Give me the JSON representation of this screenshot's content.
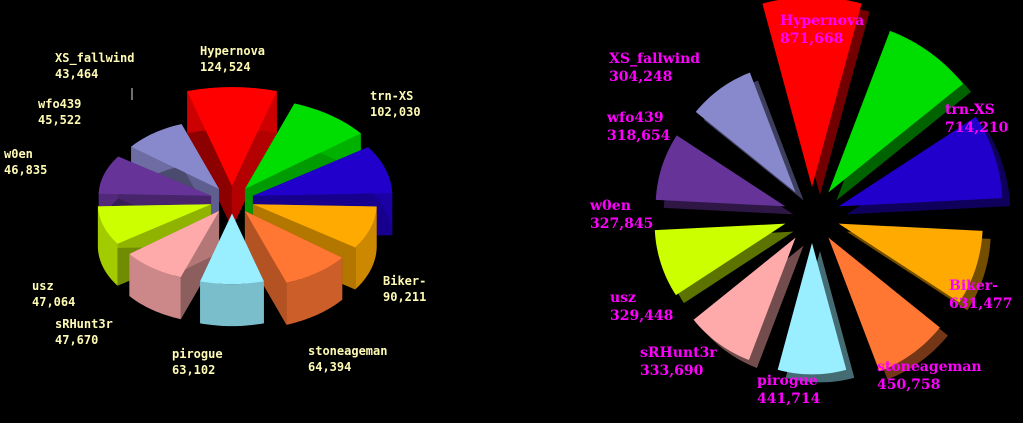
{
  "chart_data": [
    {
      "type": "pie",
      "title": "",
      "label_color": "#fffbb5",
      "categories": [
        "Hypernova",
        "trn-XS",
        "Biker-",
        "stoneageman",
        "pirogue",
        "sRHunt3r",
        "usz",
        "w0en",
        "wfo439",
        "XS_fallwind"
      ],
      "labels": [
        "Hypernova",
        "trn-XS",
        "Biker-",
        "stoneageman",
        "pirogue",
        "sRHunt3r",
        "usz",
        "w0en",
        "wfo439",
        "XS_fallwind"
      ],
      "value_labels": [
        "124,524",
        "102,030",
        "90,211",
        "64,394",
        "63,102",
        "47,670",
        "47,064",
        "46,835",
        "45,522",
        "43,464"
      ],
      "values": [
        124524,
        102030,
        90211,
        64394,
        63102,
        47670,
        47064,
        46835,
        45522,
        43464
      ],
      "colors": [
        "#ff0000",
        "#00dd00",
        "#2200cc",
        "#ffaa00",
        "#ff7733",
        "#99eeff",
        "#ffaaaa",
        "#ccff00",
        "#663399",
        "#8888cc"
      ]
    },
    {
      "type": "pie",
      "title": "",
      "label_color": "#ff00ff",
      "categories": [
        "Hypernova",
        "trn-XS",
        "Biker-",
        "stoneageman",
        "pirogue",
        "sRHunt3r",
        "usz",
        "w0en",
        "wfo439",
        "XS_fallwind"
      ],
      "labels": [
        "Hypernova",
        "trn-XS",
        "Biker-",
        "stoneageman",
        "pirogue",
        "sRHunt3r",
        "usz",
        "w0en",
        "wfo439",
        "XS_fallwind"
      ],
      "value_labels": [
        "871,668",
        "714,210",
        "631,477",
        "450,758",
        "441,714",
        "333,690",
        "329,448",
        "327,845",
        "318,654",
        "304,248"
      ],
      "values": [
        871668,
        714210,
        631477,
        450758,
        441714,
        333690,
        329448,
        327845,
        318654,
        304248
      ],
      "colors": [
        "#ff0000",
        "#00dd00",
        "#2200cc",
        "#ffaa00",
        "#ff7733",
        "#99eeff",
        "#ffaaaa",
        "#ccff00",
        "#663399",
        "#8888cc"
      ]
    }
  ]
}
